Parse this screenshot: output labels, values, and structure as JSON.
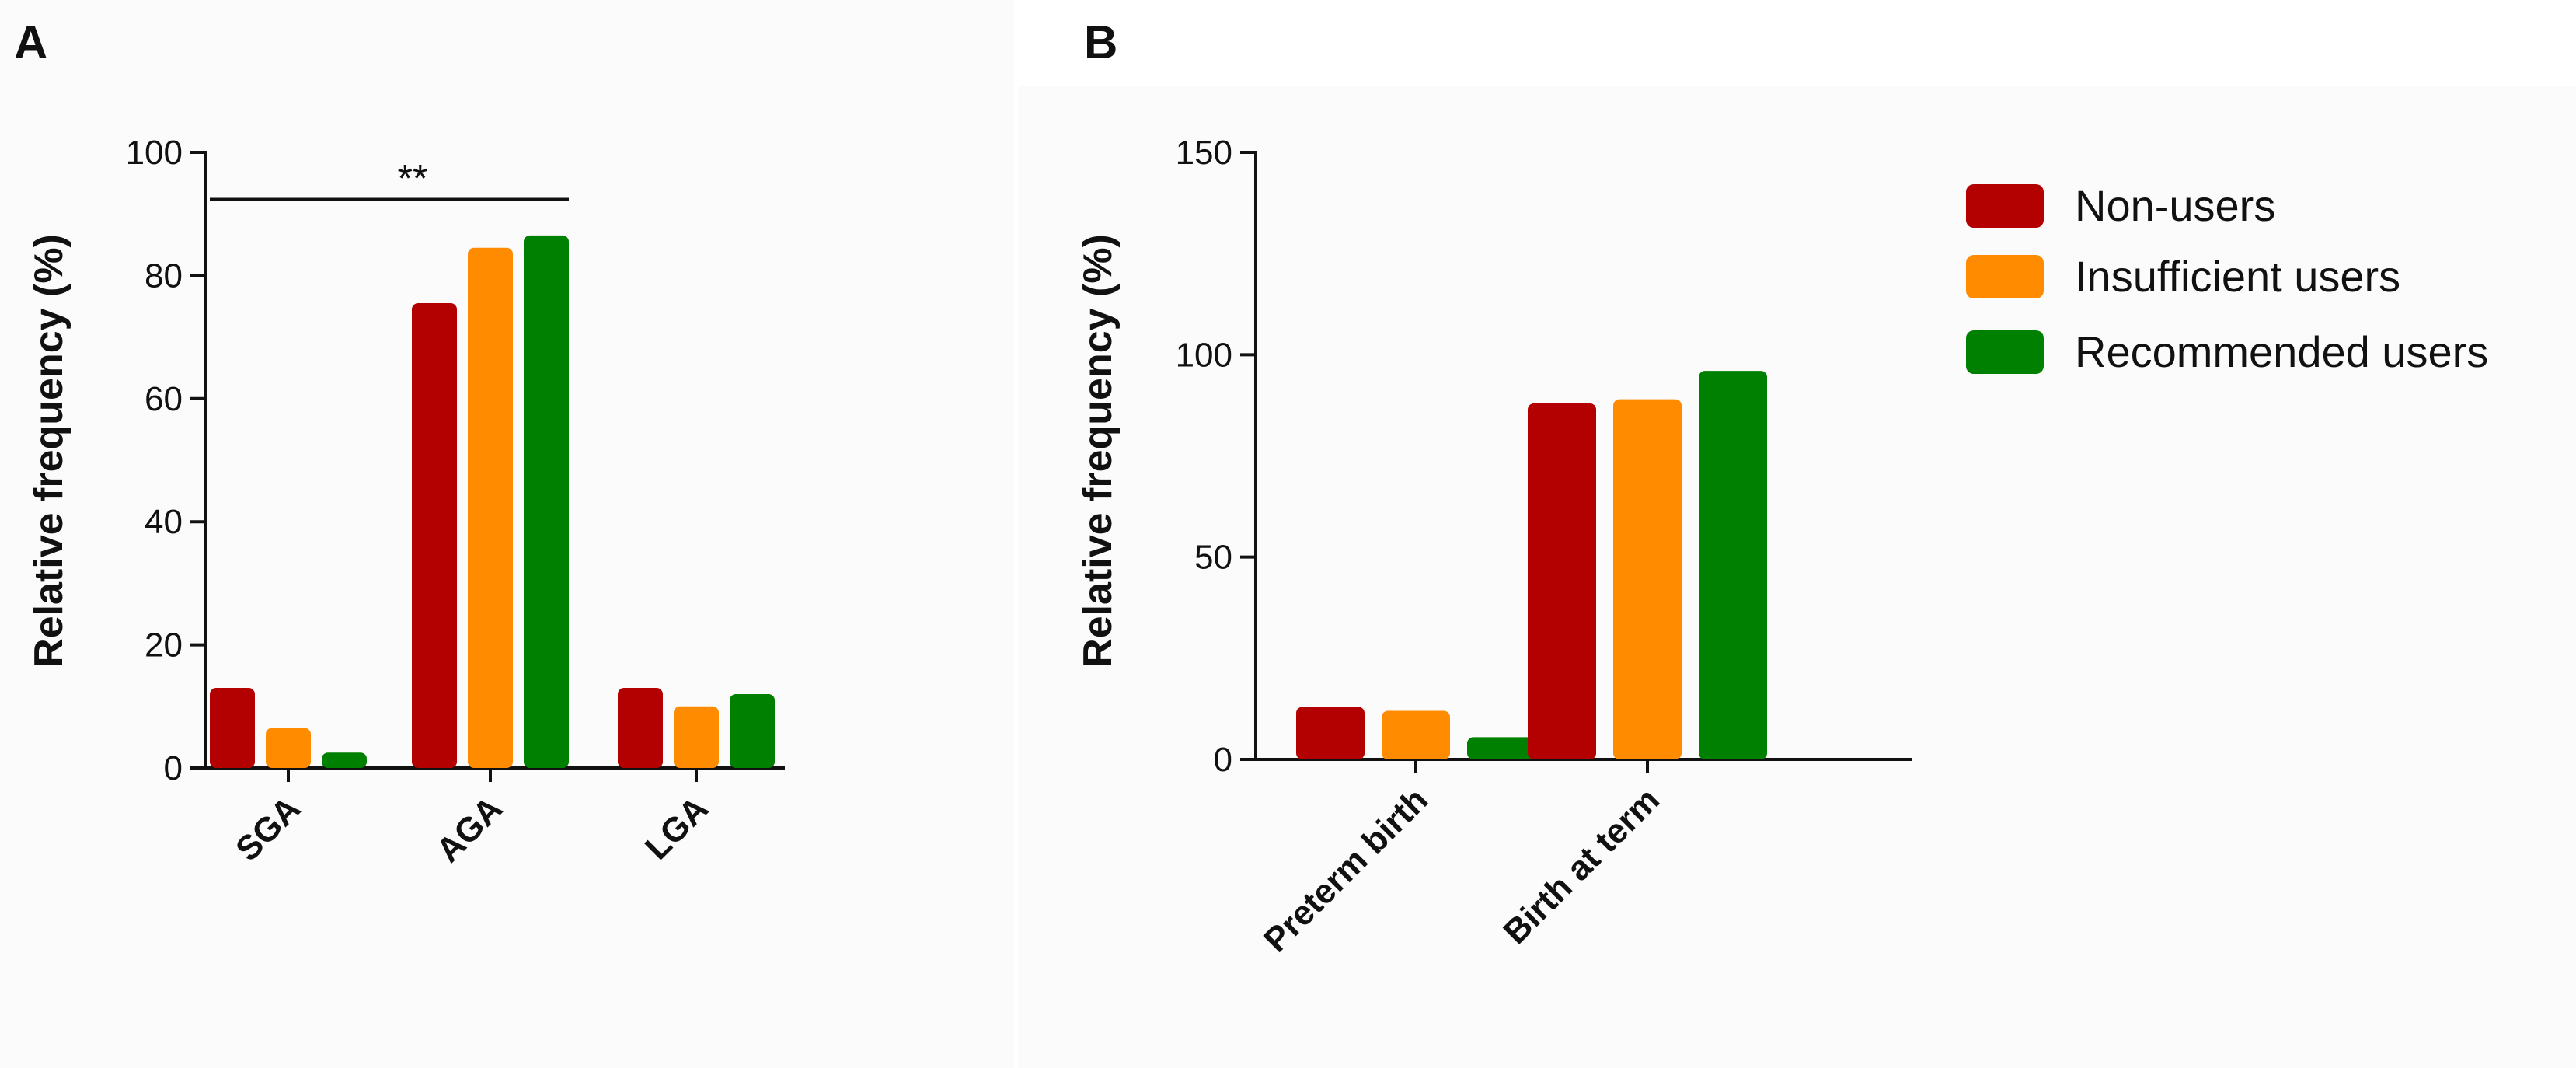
{
  "colors": {
    "Non-users": "#b30000",
    "Insufficient users": "#ff8c00",
    "Recommended users": "#008000"
  },
  "legend": [
    "Non-users",
    "Insufficient users",
    "Recommended users"
  ],
  "chart_data": [
    {
      "panel": "A",
      "type": "bar",
      "title": "",
      "xlabel": "",
      "ylabel": "Relative frequency (%)",
      "ylim": [
        0,
        100
      ],
      "yticks": [
        0,
        20,
        40,
        60,
        80,
        100
      ],
      "categories": [
        "SGA",
        "AGA",
        "LGA"
      ],
      "series": [
        {
          "name": "Non-users",
          "values": [
            13,
            75.5,
            13
          ]
        },
        {
          "name": "Insufficient users",
          "values": [
            6.5,
            84.5,
            10
          ]
        },
        {
          "name": "Recommended users",
          "values": [
            2.5,
            86.5,
            12
          ]
        }
      ],
      "annotations": [
        {
          "text": "**",
          "from_category": "SGA",
          "to_category": "AGA",
          "value": 93
        }
      ]
    },
    {
      "panel": "B",
      "type": "bar",
      "title": "",
      "xlabel": "",
      "ylabel": "Relative frequency (%)",
      "ylim": [
        0,
        150
      ],
      "yticks": [
        0,
        50,
        100,
        150
      ],
      "categories": [
        "Preterm birth",
        "Birth at term"
      ],
      "series": [
        {
          "name": "Non-users",
          "values": [
            13,
            88
          ]
        },
        {
          "name": "Insufficient users",
          "values": [
            12,
            89
          ]
        },
        {
          "name": "Recommended users",
          "values": [
            5.5,
            96
          ]
        }
      ],
      "legend_position": "top-right"
    }
  ]
}
